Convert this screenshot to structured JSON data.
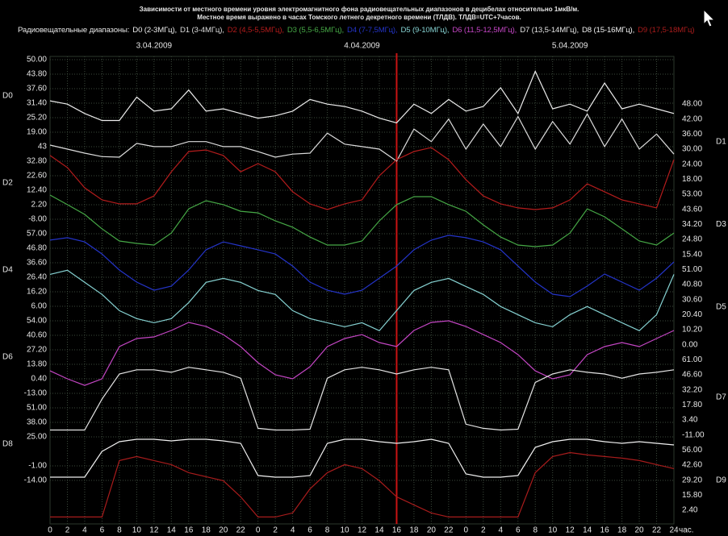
{
  "chart_data": {
    "type": "line",
    "title": "Зависимости от местного времени уровня электромагнитного фона радиовещательных диапазонов в децибелах относительно 1мкВ/м.",
    "subtitle": "Местное время выражено в часах Томского летнего декретного времени (ТЛДВ). ТЛДВ=UTC+7часов.",
    "legend_title": "Радиовещательные диапазоны:",
    "dates": [
      "3.04.2009",
      "4.04.2009",
      "5.04.2009"
    ],
    "xlabel": "час.",
    "xlim": [
      0,
      72
    ],
    "xticks": [
      0,
      2,
      4,
      6,
      8,
      10,
      12,
      14,
      16,
      18,
      20,
      22,
      {
        "value": 24,
        "label": "0"
      },
      {
        "value": 26,
        "label": "2"
      },
      {
        "value": 28,
        "label": "4"
      },
      {
        "value": 30,
        "label": "6"
      },
      {
        "value": 32,
        "label": "8"
      },
      {
        "value": 34,
        "label": "10"
      },
      {
        "value": 36,
        "label": "12"
      },
      {
        "value": 38,
        "label": "14"
      },
      {
        "value": 40,
        "label": "16"
      },
      {
        "value": 42,
        "label": "18"
      },
      {
        "value": 44,
        "label": "20"
      },
      {
        "value": 46,
        "label": "22"
      },
      {
        "value": 48,
        "label": "0"
      },
      {
        "value": 50,
        "label": "2"
      },
      {
        "value": 52,
        "label": "4"
      },
      {
        "value": 54,
        "label": "6"
      },
      {
        "value": 56,
        "label": "8"
      },
      {
        "value": 58,
        "label": "10"
      },
      {
        "value": 60,
        "label": "12"
      },
      {
        "value": 62,
        "label": "14"
      },
      {
        "value": 64,
        "label": "16"
      },
      {
        "value": 66,
        "label": "18"
      },
      {
        "value": 68,
        "label": "20"
      },
      {
        "value": 70,
        "label": "22"
      },
      {
        "value": 72,
        "label": "24"
      }
    ],
    "marker_x": 40,
    "marker_color": "#c81414",
    "grid": true,
    "x": [
      0,
      2,
      4,
      6,
      8,
      10,
      12,
      14,
      16,
      18,
      20,
      22,
      24,
      26,
      28,
      30,
      32,
      34,
      36,
      38,
      40,
      42,
      44,
      46,
      48,
      50,
      52,
      54,
      56,
      58,
      60,
      62,
      64,
      66,
      68,
      70,
      72
    ],
    "series": [
      {
        "name": "D0",
        "legend_label": "D0 (2-3МГц),",
        "side": "left",
        "color": "#ececec",
        "ylim": [
          19,
          50
        ],
        "yticks": [
          {
            "value": 50,
            "label": "50.00"
          },
          {
            "value": 43.8,
            "label": "43.80"
          },
          {
            "value": 37.6,
            "label": "37.60"
          },
          {
            "value": 31.4,
            "label": "31.40"
          },
          {
            "value": 25.2,
            "label": "25.20"
          },
          {
            "value": 19,
            "label": "19.00"
          }
        ],
        "values": [
          32.4,
          31,
          27,
          24,
          24,
          34,
          28,
          29,
          37,
          28,
          29,
          27,
          25,
          26,
          28,
          33,
          31,
          30,
          28,
          25,
          23,
          31,
          27,
          33,
          28,
          30,
          38,
          27,
          45,
          29,
          31,
          28,
          40,
          29,
          31,
          29,
          27
        ]
      },
      {
        "name": "D1",
        "legend_label": "D1 (3-4МГц),",
        "side": "right",
        "color": "#dcdcdc",
        "ylim": [
          18,
          48
        ],
        "yticks": [
          {
            "value": 48,
            "label": "48.00"
          },
          {
            "value": 42,
            "label": "42.00"
          },
          {
            "value": 36,
            "label": "36.00"
          },
          {
            "value": 30,
            "label": "30.00"
          },
          {
            "value": 24,
            "label": "24.00"
          },
          {
            "value": 18,
            "label": "18.00"
          }
        ],
        "values": [
          31.6,
          30,
          28.4,
          27,
          26.8,
          32.3,
          31,
          31,
          33,
          33,
          31,
          31,
          29,
          26.8,
          28,
          28.4,
          36.4,
          32,
          31,
          30,
          25.2,
          38,
          33,
          42,
          30,
          40,
          31,
          43,
          30,
          41,
          32,
          44,
          31,
          42,
          30,
          36,
          28
        ]
      },
      {
        "name": "D2",
        "legend_label": "D2 (4,5-5,5МГц),",
        "side": "left",
        "color": "#b41c1c",
        "ylim": [
          -8,
          43
        ],
        "yticks": [
          43,
          {
            "value": 32.8,
            "label": "32.80"
          },
          {
            "value": 22.6,
            "label": "22.60"
          },
          {
            "value": 12.4,
            "label": "12.40"
          },
          {
            "value": 2.2,
            "label": "2.20"
          },
          {
            "value": -8,
            "label": "-8.00"
          }
        ],
        "values": [
          36.8,
          28.3,
          14.1,
          5.6,
          2.8,
          2.8,
          8.4,
          25.4,
          39.6,
          40.7,
          36.8,
          25.4,
          31.1,
          25.4,
          11.3,
          2.8,
          -1.2,
          2.8,
          5.6,
          22.6,
          33.9,
          39.6,
          42.4,
          33.9,
          19.8,
          8.4,
          2.8,
          0,
          -1.2,
          0,
          5.6,
          16.9,
          11.3,
          5.6,
          2.8,
          0,
          33.9
        ]
      },
      {
        "name": "D3",
        "legend_label": "D3 (5,5-6,5МГц),",
        "side": "right",
        "color": "#46a846",
        "ylim": [
          15.4,
          53
        ],
        "yticks": [
          {
            "value": 53,
            "label": "53.00"
          },
          {
            "value": 43.6,
            "label": "43.60"
          },
          {
            "value": 34.2,
            "label": "34.20"
          },
          {
            "value": 24.8,
            "label": "24.80"
          },
          {
            "value": 15.4,
            "label": "15.40"
          }
        ],
        "values": [
          52.5,
          46.5,
          40.4,
          31.4,
          23.8,
          22.3,
          21.3,
          28.8,
          43.9,
          49,
          46.5,
          42.4,
          41.4,
          36.4,
          32.4,
          26.3,
          21.3,
          21.3,
          23.8,
          36.4,
          46.5,
          51.5,
          51.5,
          46.5,
          42.4,
          33.9,
          26.3,
          21.3,
          20.3,
          21.3,
          28.8,
          43.9,
          38.9,
          31.4,
          23.8,
          21.3,
          28.8
        ]
      },
      {
        "name": "D4",
        "legend_label": "D4 (7-7,5МГц),",
        "side": "left",
        "color": "#2434c8",
        "ylim": [
          6,
          57
        ],
        "yticks": [
          {
            "value": 57,
            "label": "57.00"
          },
          {
            "value": 46.8,
            "label": "46.80"
          },
          {
            "value": 36.6,
            "label": "36.60"
          },
          {
            "value": 26.4,
            "label": "26.40"
          },
          {
            "value": 16.2,
            "label": "16.20"
          },
          {
            "value": 6,
            "label": "6.00"
          }
        ],
        "values": [
          52.5,
          54.2,
          51.3,
          42.8,
          31.5,
          23,
          17.3,
          20.2,
          31.5,
          45.7,
          51.3,
          48.5,
          45.7,
          42.8,
          34.3,
          23,
          17.3,
          14.5,
          17.3,
          25.8,
          34.3,
          45.7,
          52.5,
          55.9,
          54.2,
          51.3,
          45.7,
          34.3,
          23,
          14.5,
          12.8,
          20.2,
          28.7,
          23,
          17.3,
          25.8,
          37.2
        ]
      },
      {
        "name": "D5",
        "legend_label": "D5 (9-10МГц),",
        "side": "right",
        "color": "#86d2d2",
        "ylim": [
          0,
          51
        ],
        "yticks": [
          {
            "value": 51,
            "label": "51.00"
          },
          {
            "value": 40.8,
            "label": "40.80"
          },
          {
            "value": 30.6,
            "label": "30.60"
          },
          {
            "value": 20.4,
            "label": "20.40"
          },
          {
            "value": 10.2,
            "label": "10.20"
          },
          {
            "value": 0,
            "label": "0.00"
          }
        ],
        "values": [
          47.7,
          50.5,
          42.3,
          34.1,
          23.1,
          17.7,
          14.9,
          17.7,
          28.6,
          42.3,
          45,
          42.3,
          36.8,
          34.1,
          23.1,
          17.7,
          14.9,
          12.2,
          14.9,
          9.5,
          23.1,
          36.8,
          42.3,
          45,
          39.5,
          34.1,
          25.9,
          20.4,
          14.9,
          12.2,
          20.4,
          25.9,
          20.4,
          14.9,
          9.5,
          20.4,
          47.7
        ]
      },
      {
        "name": "D6",
        "legend_label": "D6 (11,5-12,5МГц),",
        "side": "left",
        "color": "#c446c4",
        "ylim": [
          -13,
          54
        ],
        "yticks": [
          {
            "value": 54,
            "label": "54.00"
          },
          {
            "value": 40.6,
            "label": "40.60"
          },
          {
            "value": 27.2,
            "label": "27.20"
          },
          {
            "value": 13.8,
            "label": "13.80"
          },
          {
            "value": 0.4,
            "label": "0.40"
          },
          {
            "value": -13,
            "label": "-13.00"
          }
        ],
        "values": [
          7.8,
          0.4,
          -5.6,
          0.4,
          30.2,
          37.6,
          39.1,
          45.1,
          52.5,
          48.8,
          41.3,
          30.2,
          15.3,
          4.1,
          0.4,
          11.6,
          30.2,
          37.6,
          41.3,
          33.9,
          30.2,
          45.1,
          52.5,
          54,
          48.8,
          41.3,
          33.9,
          22.7,
          7.8,
          0.4,
          4.1,
          22.7,
          30.2,
          33.9,
          30.2,
          37.6,
          45.1
        ]
      },
      {
        "name": "D7",
        "legend_label": "D7 (13,5-14МГц),",
        "side": "right",
        "color": "#e4e4e4",
        "ylim": [
          -11,
          61
        ],
        "yticks": [
          {
            "value": 61,
            "label": "61.00"
          },
          {
            "value": 46.6,
            "label": "46.60"
          },
          {
            "value": 32.2,
            "label": "32.20"
          },
          {
            "value": 17.8,
            "label": "17.80"
          },
          {
            "value": 3.4,
            "label": "3.40"
          },
          {
            "value": -11,
            "label": "-11.00"
          }
        ],
        "values": [
          -6.2,
          -6.2,
          -6.2,
          23.4,
          47.4,
          51.4,
          51.4,
          49,
          53.8,
          51.4,
          49,
          43.4,
          -4.6,
          -6.2,
          -6.2,
          -5.4,
          43.4,
          51.4,
          53.8,
          51.4,
          47.4,
          51.4,
          53.8,
          51.4,
          -0.6,
          -4.6,
          -6.2,
          -5.4,
          39.4,
          47.4,
          51.4,
          49,
          47.4,
          43.4,
          47.4,
          49,
          51.4
        ]
      },
      {
        "name": "D8",
        "legend_label": "D8 (15-16МГц),",
        "side": "left",
        "color": "#f0f0f0",
        "ylim": [
          -14,
          51
        ],
        "yticks": [
          {
            "value": 51,
            "label": "51.00"
          },
          {
            "value": 38,
            "label": "38.00"
          },
          {
            "value": 25,
            "label": "25.00"
          },
          {
            "value": -1,
            "label": "-1.00"
          },
          {
            "value": -14,
            "label": "-14.00"
          }
        ],
        "values": [
          -11.1,
          -11.1,
          -11.1,
          12,
          20.7,
          22.8,
          22.8,
          21.4,
          22.8,
          22.8,
          21.4,
          19.2,
          -9.7,
          -11.1,
          -11.1,
          -9.7,
          19.2,
          22.8,
          22.8,
          20.7,
          19.2,
          20.7,
          22.8,
          19.2,
          -8.2,
          -11.1,
          -11.1,
          -9.7,
          15.6,
          20.7,
          22.8,
          22.8,
          20.7,
          19.2,
          20.7,
          19.2,
          17.8
        ]
      },
      {
        "name": "D9",
        "legend_label": "D9 (17,5-18МГц)",
        "side": "right",
        "color": "#a81c1c",
        "ylim": [
          2.4,
          56
        ],
        "yticks": [
          {
            "value": 56,
            "label": "56.00"
          },
          {
            "value": 42.6,
            "label": "42.60"
          },
          {
            "value": 29.2,
            "label": "29.20"
          },
          {
            "value": 15.8,
            "label": "15.80"
          },
          {
            "value": 2.4,
            "label": "2.40"
          }
        ],
        "values": [
          -3.6,
          -3.6,
          -3.6,
          -3.6,
          46.7,
          50.3,
          46.7,
          43.1,
          35.9,
          32.3,
          28.7,
          14.4,
          -3.6,
          -3.6,
          0,
          21.5,
          35.9,
          43.1,
          39.5,
          28.7,
          14.4,
          7.2,
          0,
          -3.6,
          -3.6,
          -3.6,
          -3.6,
          -3.6,
          35.9,
          50.3,
          53.8,
          51.7,
          50.3,
          48.8,
          46.7,
          43.1,
          39.5
        ]
      }
    ]
  }
}
